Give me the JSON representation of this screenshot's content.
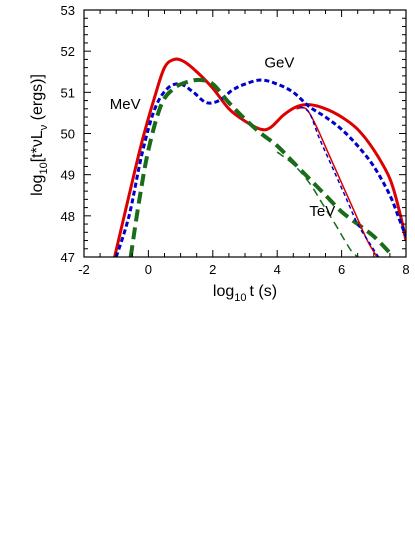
{
  "chart_data": {
    "type": "line",
    "xlabel": {
      "base": "log",
      "sub": "10",
      "rest": "t (s)"
    },
    "ylabel": {
      "pre": "log",
      "sub1": "10",
      "mid": "[t*νL",
      "sub2": "ν",
      "post": " (ergs)]"
    },
    "xlim": [
      -2,
      8
    ],
    "ylim": [
      47,
      53
    ],
    "xticks": [
      "-2",
      "0",
      "2",
      "4",
      "6",
      "8"
    ],
    "yticks": [
      "47",
      "48",
      "49",
      "50",
      "51",
      "52",
      "53"
    ],
    "grid": false,
    "legend": "none",
    "annotations": [
      {
        "text": "MeV",
        "x": -1.2,
        "y": 50.6
      },
      {
        "text": "GeV",
        "x": 3.6,
        "y": 51.6
      },
      {
        "text": "TeV",
        "x": 5.0,
        "y": 48.0
      }
    ],
    "series": [
      {
        "color": "#dd0000",
        "dash": "none",
        "width": 3,
        "x": [
          -1.05,
          -0.6,
          -0.2,
          0.2,
          0.5,
          0.8,
          1.1,
          1.5,
          2.0,
          2.5,
          3.0,
          3.5,
          3.8,
          4.2,
          4.6,
          5.0,
          5.5,
          6.0,
          6.5,
          7.0,
          7.5,
          7.8,
          8.0
        ],
        "y": [
          47.0,
          48.5,
          49.8,
          50.9,
          51.6,
          51.8,
          51.75,
          51.5,
          51.1,
          50.6,
          50.3,
          50.1,
          50.15,
          50.45,
          50.65,
          50.7,
          50.6,
          50.4,
          50.1,
          49.6,
          48.9,
          48.1,
          47.4
        ]
      },
      {
        "color": "#0000cc",
        "dash": "5,3",
        "width": 3,
        "x": [
          -1.0,
          -0.6,
          -0.2,
          0.2,
          0.6,
          1.0,
          1.4,
          1.8,
          2.2,
          2.6,
          3.0,
          3.5,
          4.0,
          4.5,
          5.0,
          5.5,
          6.0,
          6.5,
          7.0,
          7.5,
          7.8,
          8.0
        ],
        "y": [
          47.0,
          48.0,
          49.5,
          50.6,
          51.1,
          51.2,
          51.0,
          50.75,
          50.8,
          51.05,
          51.2,
          51.3,
          51.2,
          51.0,
          50.65,
          50.4,
          50.1,
          49.7,
          49.2,
          48.5,
          47.9,
          47.5
        ]
      },
      {
        "color": "#1a6b1a",
        "dash": "12,6",
        "width": 4,
        "x": [
          -0.55,
          -0.3,
          0.0,
          0.4,
          0.8,
          1.2,
          1.6,
          2.0,
          2.5,
          3.0,
          3.5,
          4.0,
          4.5,
          5.0,
          5.5,
          6.0,
          6.5,
          7.0,
          7.5
        ],
        "y": [
          47.0,
          48.3,
          49.6,
          50.7,
          51.1,
          51.25,
          51.3,
          51.2,
          50.75,
          50.35,
          50.0,
          49.7,
          49.3,
          48.9,
          48.5,
          48.1,
          47.8,
          47.5,
          47.1
        ]
      },
      {
        "color": "#dd0000",
        "dash": "none",
        "width": 1.5,
        "x": [
          4.6,
          4.9,
          5.2,
          5.6,
          6.0,
          6.4,
          6.8,
          7.1
        ],
        "y": [
          50.6,
          50.6,
          50.2,
          49.5,
          48.8,
          48.1,
          47.4,
          47.0
        ]
      },
      {
        "color": "#0000cc",
        "dash": "4,3",
        "width": 1.5,
        "x": [
          4.7,
          5.0,
          5.3,
          5.7,
          6.1,
          6.5,
          6.9,
          7.15
        ],
        "y": [
          50.65,
          50.5,
          49.9,
          49.2,
          48.5,
          47.8,
          47.3,
          47.0
        ]
      },
      {
        "color": "#1a6b1a",
        "dash": "8,5",
        "width": 1.5,
        "x": [
          4.0,
          4.5,
          5.0,
          5.4,
          5.8,
          6.1,
          6.3,
          6.5
        ],
        "y": [
          49.55,
          49.25,
          48.8,
          48.3,
          47.8,
          47.4,
          47.15,
          47.0
        ]
      }
    ]
  }
}
